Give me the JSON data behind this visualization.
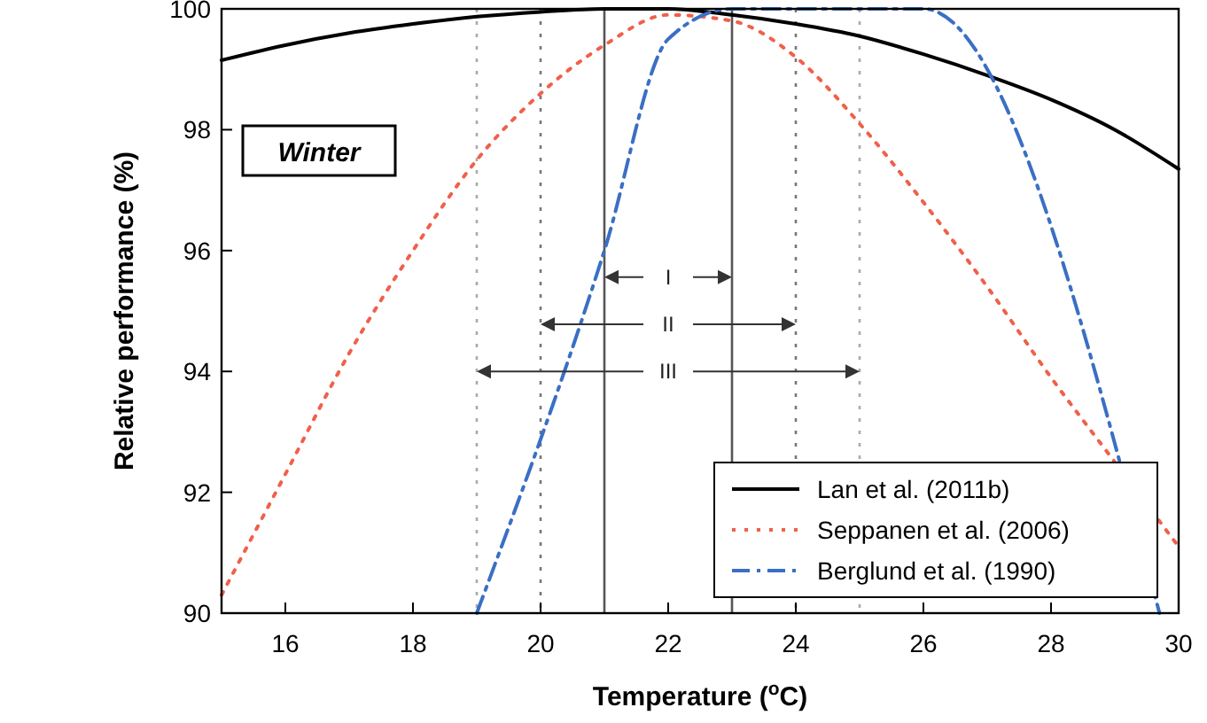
{
  "chart_data": {
    "type": "line",
    "xlabel": "Temperature ($^{o}$C)",
    "ylabel": "Relative performance (%)",
    "xlim": [
      15,
      30
    ],
    "xticks": [
      16,
      18,
      20,
      22,
      24,
      26,
      28,
      30
    ],
    "ylim": [
      90,
      100
    ],
    "yticks": [
      90,
      92,
      94,
      96,
      98,
      100
    ],
    "grid": false,
    "legend": "bottom right",
    "annotations": [
      "Winter",
      "III",
      "II",
      "I"
    ],
    "series": [
      {
        "name": "Lan et al. (2011b)",
        "color": "#000000",
        "line_style": "solid",
        "x": [
          15,
          16,
          17,
          18,
          19,
          20,
          21,
          22,
          23,
          24,
          25,
          26,
          27,
          28,
          29,
          30
        ],
        "values": [
          99.15,
          99.4,
          99.6,
          99.75,
          99.87,
          99.95,
          100,
          100,
          99.9,
          99.75,
          99.55,
          99.25,
          98.9,
          98.5,
          98.0,
          97.35
        ]
      },
      {
        "name": "Seppanen et al. (2006)",
        "color": "#f0604a",
        "line_style": "dotted",
        "x": [
          15,
          16,
          17,
          18,
          19,
          20,
          21,
          22,
          23,
          24,
          25,
          26,
          27,
          28,
          29,
          30
        ],
        "values": [
          90.3,
          92.3,
          94.3,
          96.0,
          97.5,
          98.6,
          99.4,
          99.9,
          99.8,
          99.2,
          98.1,
          96.8,
          95.4,
          93.9,
          92.5,
          91.1
        ]
      },
      {
        "name": "Berglund et al. (1990)",
        "color": "#3a6fc4",
        "line_style": "dashdot",
        "x": [
          19,
          21,
          22,
          23,
          26,
          29.7
        ],
        "values": [
          90,
          96,
          99.5,
          100,
          100,
          90
        ]
      }
    ],
    "ref_lines": [
      {
        "axis": "x",
        "value": 19,
        "color": "#aaaaaa",
        "line_style": "dotted"
      },
      {
        "axis": "x",
        "value": 20,
        "color": "#777777",
        "line_style": "dotted"
      },
      {
        "axis": "x",
        "value": 21,
        "color": "#555555",
        "line_style": "solid"
      },
      {
        "axis": "x",
        "value": 23,
        "color": "#555555",
        "line_style": "solid"
      },
      {
        "axis": "x",
        "value": 24,
        "color": "#777777",
        "line_style": "dotted"
      },
      {
        "axis": "x",
        "value": 25,
        "color": "#aaaaaa",
        "line_style": "dotted"
      }
    ]
  }
}
